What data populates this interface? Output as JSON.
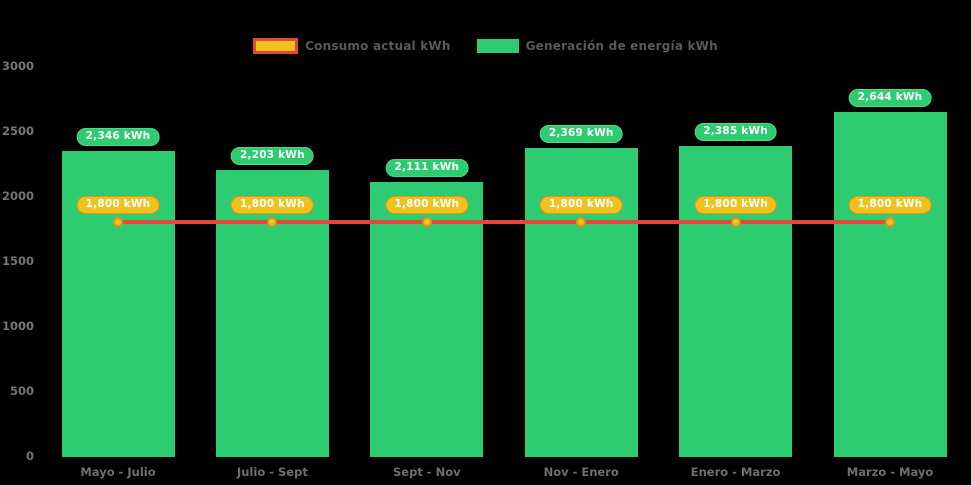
{
  "legend": {
    "items": [
      {
        "id": "consumo",
        "label": "Consumo actual kWh"
      },
      {
        "id": "generacion",
        "label": "Generación de energía kWh"
      }
    ]
  },
  "chart_data": {
    "type": "bar",
    "title": "",
    "xlabel": "",
    "ylabel": "",
    "categories": [
      "Mayo - Julio",
      "Julio - Sept",
      "Sept - Nov",
      "Nov - Enero",
      "Enero - Marzo",
      "Marzo - Mayo"
    ],
    "series": [
      {
        "name": "Generación de energía kWh",
        "type": "bar",
        "values": [
          2346,
          2203,
          2111,
          2369,
          2385,
          2644
        ],
        "labels": [
          "2,346 kWh",
          "2,203 kWh",
          "2,111 kWh",
          "2,369 kWh",
          "2,385 kWh",
          "2,644 kWh"
        ],
        "color": "#2ecc71",
        "badge_fill": "#2ecc71",
        "badge_border": "#52d88a"
      },
      {
        "name": "Consumo actual kWh",
        "type": "line",
        "values": [
          1800,
          1800,
          1800,
          1800,
          1800,
          1800
        ],
        "labels": [
          "1,800 kWh",
          "1,800 kWh",
          "1,800 kWh",
          "1,800 kWh",
          "1,800 kWh",
          "1,800 kWh"
        ],
        "color": "#e5483b",
        "marker_fill": "#f5c41d",
        "marker_border": "#ef8c1a",
        "badge_fill": "#f0c21d",
        "badge_border": "#ef8c1a"
      }
    ],
    "ylim": [
      0,
      3000
    ],
    "yticks": [
      0,
      500,
      1000,
      1500,
      2000,
      2500,
      3000
    ],
    "grid": false,
    "legend_position": "top-center",
    "background": "#000000",
    "axis_text_color": "#757575"
  }
}
